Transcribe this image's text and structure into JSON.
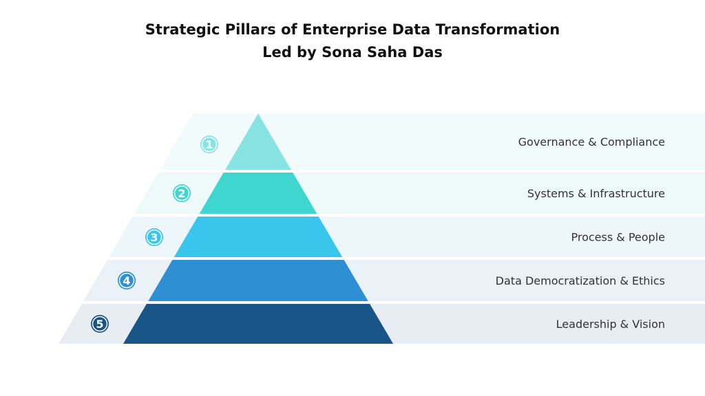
{
  "header": {
    "title": [
      "Strategic Pillars of Enterprise Data Transformation",
      "Led by Sona Saha Das"
    ]
  },
  "levels": [
    {
      "number": "1",
      "label": "Governance & Compliance",
      "color": "#88e3e3",
      "band": "#f1fbfb"
    },
    {
      "number": "2",
      "label": "Systems & Infrastructure",
      "color": "#3fd6d0",
      "band": "#eef9f9"
    },
    {
      "number": "3",
      "label": "Process & People",
      "color": "#3ac6ec",
      "band": "#edf6fa"
    },
    {
      "number": "4",
      "label": "Data Democratization & Ethics",
      "color": "#2e8fd3",
      "band": "#eaf2f8"
    },
    {
      "number": "5",
      "label": "Leadership & Vision",
      "color": "#1a5587",
      "band": "#e8edf4"
    }
  ]
}
